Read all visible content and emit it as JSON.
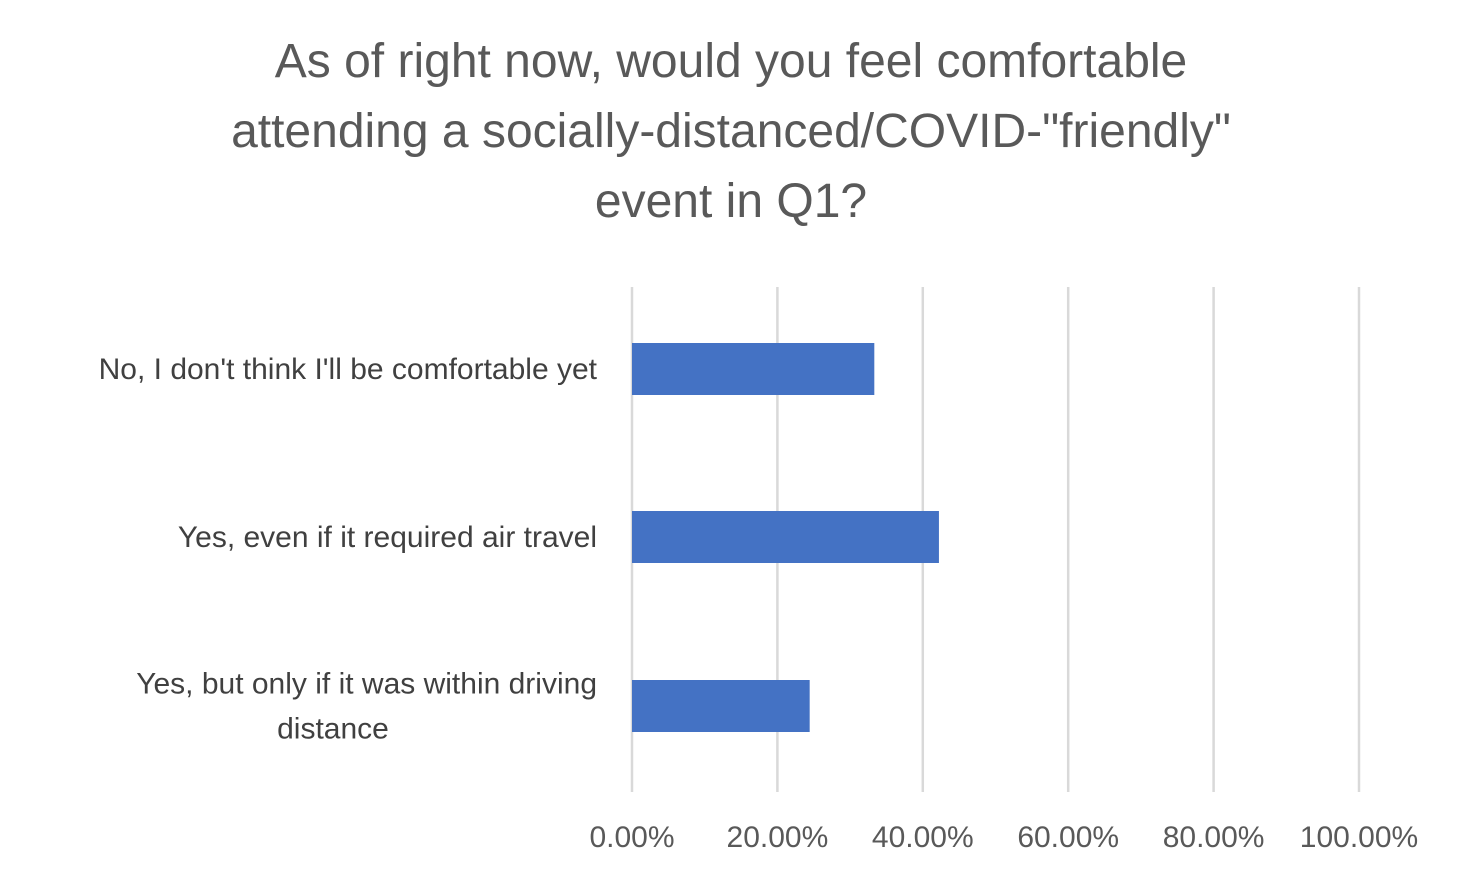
{
  "chart_data": {
    "type": "bar",
    "orientation": "horizontal",
    "title": "As of right now, would you feel comfortable attending a socially-distanced/COVID-\"friendly\" event in Q1?",
    "title_lines": [
      "As of right now, would you feel comfortable",
      "attending a socially-distanced/COVID-\"friendly\"",
      "event in Q1?"
    ],
    "categories": [
      "No, I don't think I'll be comfortable yet",
      "Yes, even if it required air travel",
      "Yes, but only if it was within driving distance"
    ],
    "category_lines": [
      [
        "No, I don't think I'll be comfortable yet"
      ],
      [
        "Yes, even if it required air travel"
      ],
      [
        "Yes, but only if it was within driving",
        "distance"
      ]
    ],
    "values": [
      0.3333,
      0.4222,
      0.2444
    ],
    "xlim": [
      0,
      1
    ],
    "x_ticks": [
      0,
      0.2,
      0.4,
      0.6,
      0.8,
      1.0
    ],
    "x_tick_labels": [
      "0.00%",
      "20.00%",
      "40.00%",
      "60.00%",
      "80.00%",
      "100.00%"
    ],
    "xlabel": "",
    "ylabel": "",
    "grid": "vertical major gridlines",
    "legend": "none",
    "bar_color": "#4472c4"
  }
}
